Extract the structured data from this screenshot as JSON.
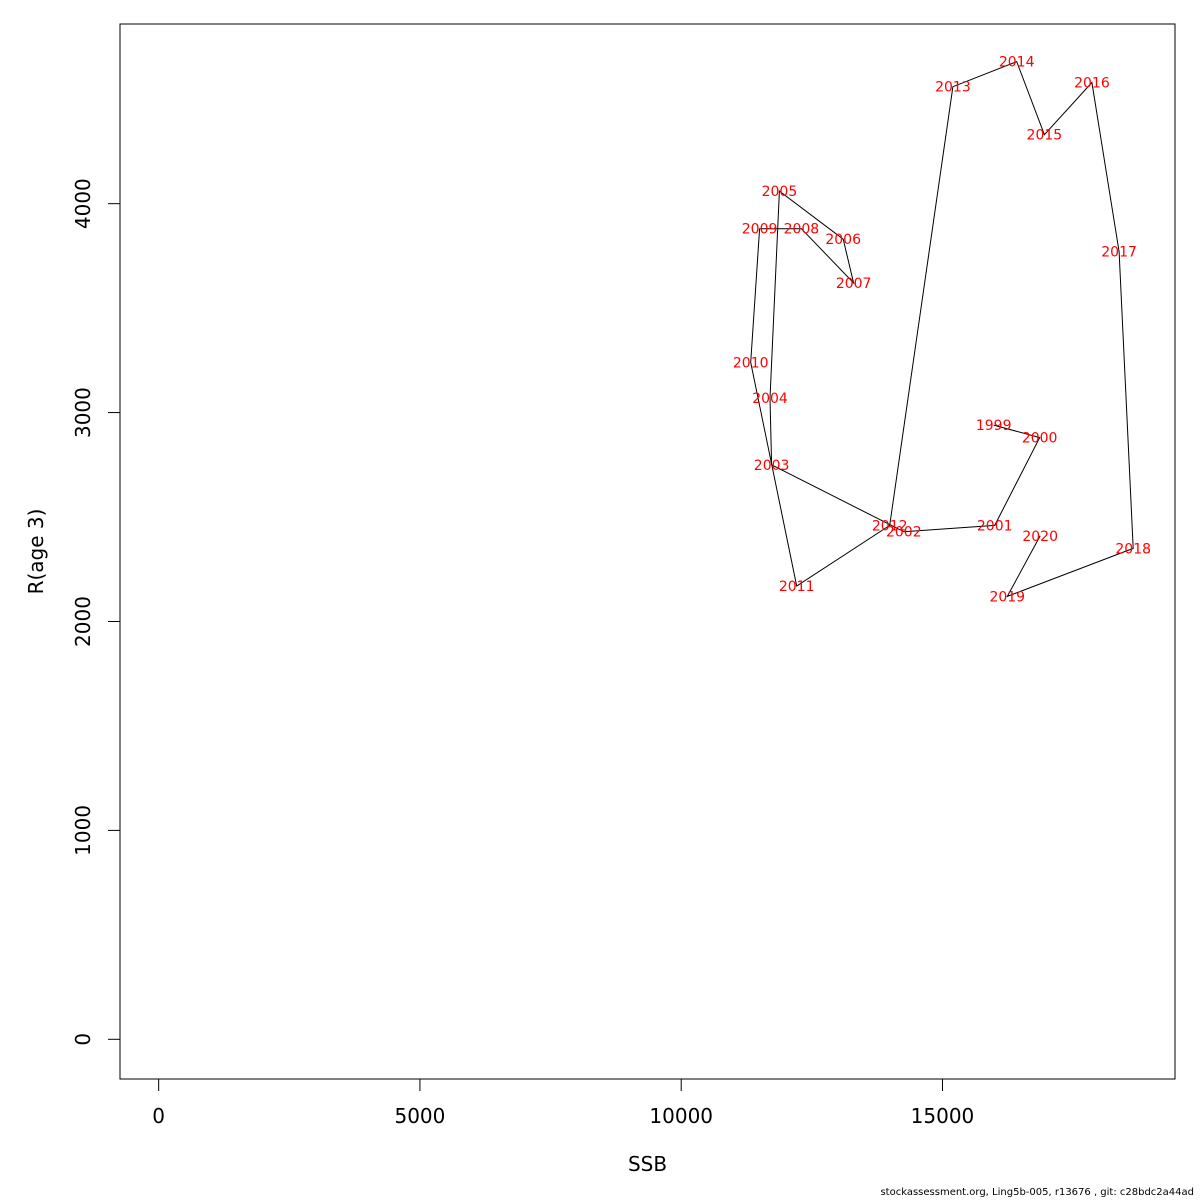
{
  "chart_data": {
    "type": "line",
    "xlabel": "SSB",
    "ylabel": "R(age 3)",
    "xlim": [
      -740,
      19450
    ],
    "ylim": [
      -190,
      4860
    ],
    "xticks": [
      0,
      5000,
      10000,
      15000
    ],
    "xtick_labels": [
      "0",
      "5000",
      "10000",
      "15000"
    ],
    "yticks": [
      0,
      1000,
      2000,
      3000,
      4000
    ],
    "ytick_labels": [
      "0",
      "1000",
      "2000",
      "3000",
      "4000"
    ],
    "grid": false,
    "line_color": "#000000",
    "label_color": "#ff0000",
    "points": [
      {
        "label": "1999",
        "x": 15980,
        "y": 2940
      },
      {
        "label": "2000",
        "x": 16860,
        "y": 2880
      },
      {
        "label": "2001",
        "x": 16000,
        "y": 2460
      },
      {
        "label": "2002",
        "x": 14260,
        "y": 2430
      },
      {
        "label": "2003",
        "x": 11730,
        "y": 2750
      },
      {
        "label": "2004",
        "x": 11700,
        "y": 3070
      },
      {
        "label": "2005",
        "x": 11880,
        "y": 4060
      },
      {
        "label": "2006",
        "x": 13100,
        "y": 3830
      },
      {
        "label": "2007",
        "x": 13300,
        "y": 3620
      },
      {
        "label": "2008",
        "x": 12300,
        "y": 3880
      },
      {
        "label": "2009",
        "x": 11500,
        "y": 3880
      },
      {
        "label": "2010",
        "x": 11330,
        "y": 3240
      },
      {
        "label": "2011",
        "x": 12210,
        "y": 2170
      },
      {
        "label": "2012",
        "x": 13990,
        "y": 2460
      },
      {
        "label": "2013",
        "x": 15200,
        "y": 4560
      },
      {
        "label": "2014",
        "x": 16420,
        "y": 4680
      },
      {
        "label": "2015",
        "x": 16950,
        "y": 4330
      },
      {
        "label": "2016",
        "x": 17860,
        "y": 4580
      },
      {
        "label": "2017",
        "x": 18380,
        "y": 3770
      },
      {
        "label": "2018",
        "x": 18650,
        "y": 2350
      },
      {
        "label": "2019",
        "x": 16240,
        "y": 2120
      },
      {
        "label": "2020",
        "x": 16870,
        "y": 2410
      }
    ]
  },
  "footer": "stockassessment.org, Ling5b-005, r13676 , git: c28bdc2a44ad"
}
